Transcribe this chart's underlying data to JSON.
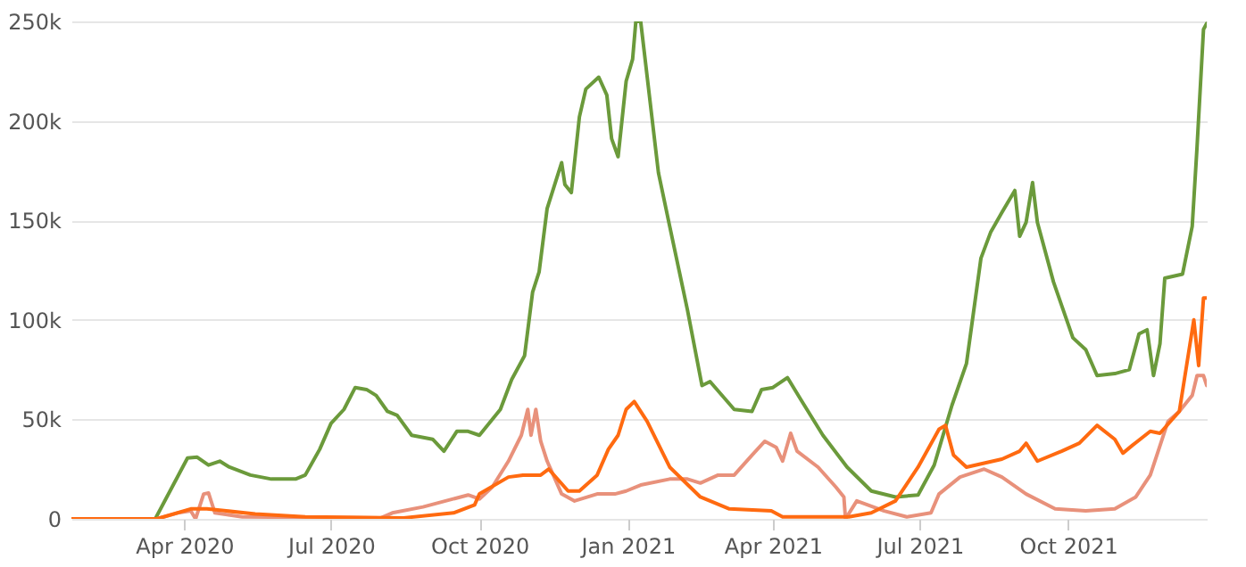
{
  "chart_data": {
    "type": "line",
    "xlim": [
      "2020-01-22",
      "2021-12-26"
    ],
    "ylim": [
      0,
      250000
    ],
    "xticks": [
      {
        "value": "2020-04-01",
        "label": "Apr 2020"
      },
      {
        "value": "2020-07-01",
        "label": "Jul 2020"
      },
      {
        "value": "2020-10-01",
        "label": "Oct 2020"
      },
      {
        "value": "2021-01-01",
        "label": "Jan 2021"
      },
      {
        "value": "2021-04-01",
        "label": "Apr 2021"
      },
      {
        "value": "2021-07-01",
        "label": "Jul 2021"
      },
      {
        "value": "2021-10-01",
        "label": "Oct 2021"
      }
    ],
    "yticks": [
      0,
      {
        "value": 50000,
        "label": "50k"
      },
      {
        "value": 100000,
        "label": "100k"
      },
      {
        "value": 150000,
        "label": "150k"
      },
      {
        "value": 200000,
        "label": "200k"
      },
      {
        "value": 250000,
        "label": "250k"
      }
    ],
    "grid": "y",
    "line_style": "solid",
    "marker": "none",
    "series": [
      {
        "color": "#6b9a3b",
        "x": [
          "2020-01-22",
          "2020-03-14",
          "2020-04-03",
          "2020-04-09",
          "2020-04-16",
          "2020-04-23",
          "2020-04-29",
          "2020-05-12",
          "2020-05-25",
          "2020-06-09",
          "2020-06-15",
          "2020-06-24",
          "2020-07-01",
          "2020-07-09",
          "2020-07-16",
          "2020-07-23",
          "2020-07-29",
          "2020-08-05",
          "2020-08-11",
          "2020-08-20",
          "2020-09-02",
          "2020-09-09",
          "2020-09-17",
          "2020-09-24",
          "2020-10-01",
          "2020-10-14",
          "2020-10-21",
          "2020-10-29",
          "2020-11-03",
          "2020-11-07",
          "2020-11-12",
          "2020-11-21",
          "2020-11-23",
          "2020-11-27",
          "2020-12-02",
          "2020-12-06",
          "2020-12-14",
          "2020-12-19",
          "2020-12-22",
          "2020-12-26",
          "2020-12-31",
          "2021-01-04",
          "2021-01-06",
          "2021-01-09",
          "2021-01-20",
          "2021-01-27",
          "2021-02-07",
          "2021-02-16",
          "2021-02-21",
          "2021-03-08",
          "2021-03-19",
          "2021-03-25",
          "2021-04-01",
          "2021-04-10",
          "2021-04-19",
          "2021-05-02",
          "2021-05-17",
          "2021-06-01",
          "2021-06-16",
          "2021-06-30",
          "2021-07-10",
          "2021-07-21",
          "2021-07-30",
          "2021-08-08",
          "2021-08-14",
          "2021-08-21",
          "2021-08-29",
          "2021-09-01",
          "2021-09-05",
          "2021-09-09",
          "2021-09-12",
          "2021-09-22",
          "2021-10-04",
          "2021-10-12",
          "2021-10-19",
          "2021-10-30",
          "2021-11-08",
          "2021-11-14",
          "2021-11-19",
          "2021-11-23",
          "2021-11-27",
          "2021-11-30",
          "2021-12-11",
          "2021-12-17",
          "2021-12-20",
          "2021-12-24",
          "2021-12-26"
        ],
        "values": [
          0,
          0,
          30600,
          31000,
          27000,
          29000,
          26000,
          22000,
          20000,
          20000,
          22000,
          35000,
          48000,
          55000,
          66000,
          65000,
          62000,
          54000,
          52000,
          42000,
          40000,
          34000,
          44000,
          44000,
          42000,
          55000,
          70000,
          82000,
          114000,
          124000,
          156000,
          179000,
          168000,
          164000,
          202000,
          216000,
          222000,
          213000,
          191000,
          182000,
          220000,
          231000,
          250000,
          250000,
          174000,
          147000,
          105000,
          67000,
          69000,
          55000,
          54000,
          65000,
          66000,
          71000,
          59000,
          42000,
          26000,
          14000,
          11000,
          12000,
          27000,
          57000,
          78000,
          131000,
          144000,
          154000,
          165000,
          142000,
          149000,
          169000,
          149000,
          119000,
          91000,
          85000,
          72000,
          73000,
          75000,
          93000,
          95000,
          72000,
          88000,
          121000,
          123000,
          147000,
          187000,
          246000,
          249000
        ]
      },
      {
        "color": "#e8917b",
        "x": [
          "2020-01-22",
          "2020-03-15",
          "2020-03-28",
          "2020-04-05",
          "2020-04-08",
          "2020-04-13",
          "2020-04-16",
          "2020-04-20",
          "2020-05-07",
          "2020-08-01",
          "2020-08-08",
          "2020-08-27",
          "2020-09-24",
          "2020-10-01",
          "2020-10-09",
          "2020-10-19",
          "2020-10-27",
          "2020-10-31",
          "2020-11-02",
          "2020-11-05",
          "2020-11-08",
          "2020-11-12",
          "2020-11-21",
          "2020-11-29",
          "2020-12-13",
          "2020-12-24",
          "2020-12-31",
          "2021-01-09",
          "2021-01-27",
          "2021-02-07",
          "2021-02-15",
          "2021-02-26",
          "2021-03-08",
          "2021-03-19",
          "2021-03-27",
          "2021-04-03",
          "2021-04-07",
          "2021-04-12",
          "2021-04-16",
          "2021-04-29",
          "2021-05-10",
          "2021-05-15",
          "2021-05-16",
          "2021-05-23",
          "2021-06-09",
          "2021-06-23",
          "2021-07-08",
          "2021-07-13",
          "2021-07-26",
          "2021-08-10",
          "2021-08-21",
          "2021-09-05",
          "2021-09-23",
          "2021-10-12",
          "2021-10-30",
          "2021-11-12",
          "2021-11-21",
          "2021-12-02",
          "2021-12-09",
          "2021-12-17",
          "2021-12-20",
          "2021-12-24",
          "2021-12-26"
        ],
        "values": [
          0,
          0,
          3000,
          4000,
          0,
          12500,
          13000,
          3000,
          1000,
          500,
          3000,
          6000,
          12000,
          10000,
          16000,
          29000,
          42000,
          55000,
          42000,
          55000,
          39000,
          29000,
          12500,
          9000,
          12500,
          12500,
          14000,
          17000,
          20000,
          20000,
          18000,
          22000,
          22000,
          32000,
          39000,
          36000,
          29000,
          43000,
          34000,
          26000,
          16000,
          11000,
          0,
          9000,
          4000,
          1000,
          3000,
          12500,
          21000,
          25000,
          21000,
          12500,
          5000,
          4000,
          5000,
          11000,
          22000,
          49000,
          54000,
          62000,
          72000,
          72000,
          67000
        ]
      },
      {
        "color": "#ff6a10",
        "x": [
          "2020-01-22",
          "2020-03-15",
          "2020-04-05",
          "2020-04-15",
          "2020-05-15",
          "2020-06-15",
          "2020-08-15",
          "2020-09-15",
          "2020-09-28",
          "2020-10-01",
          "2020-10-19",
          "2020-10-28",
          "2020-11-08",
          "2020-11-13",
          "2020-11-25",
          "2020-12-02",
          "2020-12-13",
          "2020-12-20",
          "2020-12-26",
          "2020-12-31",
          "2021-01-05",
          "2021-01-13",
          "2021-01-27",
          "2021-02-15",
          "2021-03-05",
          "2021-03-31",
          "2021-04-07",
          "2021-05-18",
          "2021-06-01",
          "2021-06-16",
          "2021-06-30",
          "2021-07-13",
          "2021-07-17",
          "2021-07-22",
          "2021-07-30",
          "2021-08-21",
          "2021-09-01",
          "2021-09-05",
          "2021-09-12",
          "2021-09-27",
          "2021-10-08",
          "2021-10-19",
          "2021-10-30",
          "2021-11-04",
          "2021-11-10",
          "2021-11-21",
          "2021-11-27",
          "2021-12-09",
          "2021-12-18",
          "2021-12-21",
          "2021-12-24",
          "2021-12-26"
        ],
        "values": [
          0,
          0,
          5000,
          5000,
          2500,
          1000,
          500,
          3000,
          7000,
          12500,
          21000,
          22000,
          22000,
          25000,
          14000,
          14000,
          22000,
          35000,
          42000,
          55000,
          59000,
          49000,
          26000,
          11000,
          5000,
          4000,
          1000,
          1000,
          3000,
          9000,
          26000,
          45000,
          47000,
          32000,
          26000,
          30000,
          34000,
          38000,
          29000,
          34000,
          38000,
          47000,
          40000,
          33000,
          37000,
          44000,
          43000,
          54000,
          100000,
          77000,
          111000,
          111000
        ]
      }
    ]
  }
}
